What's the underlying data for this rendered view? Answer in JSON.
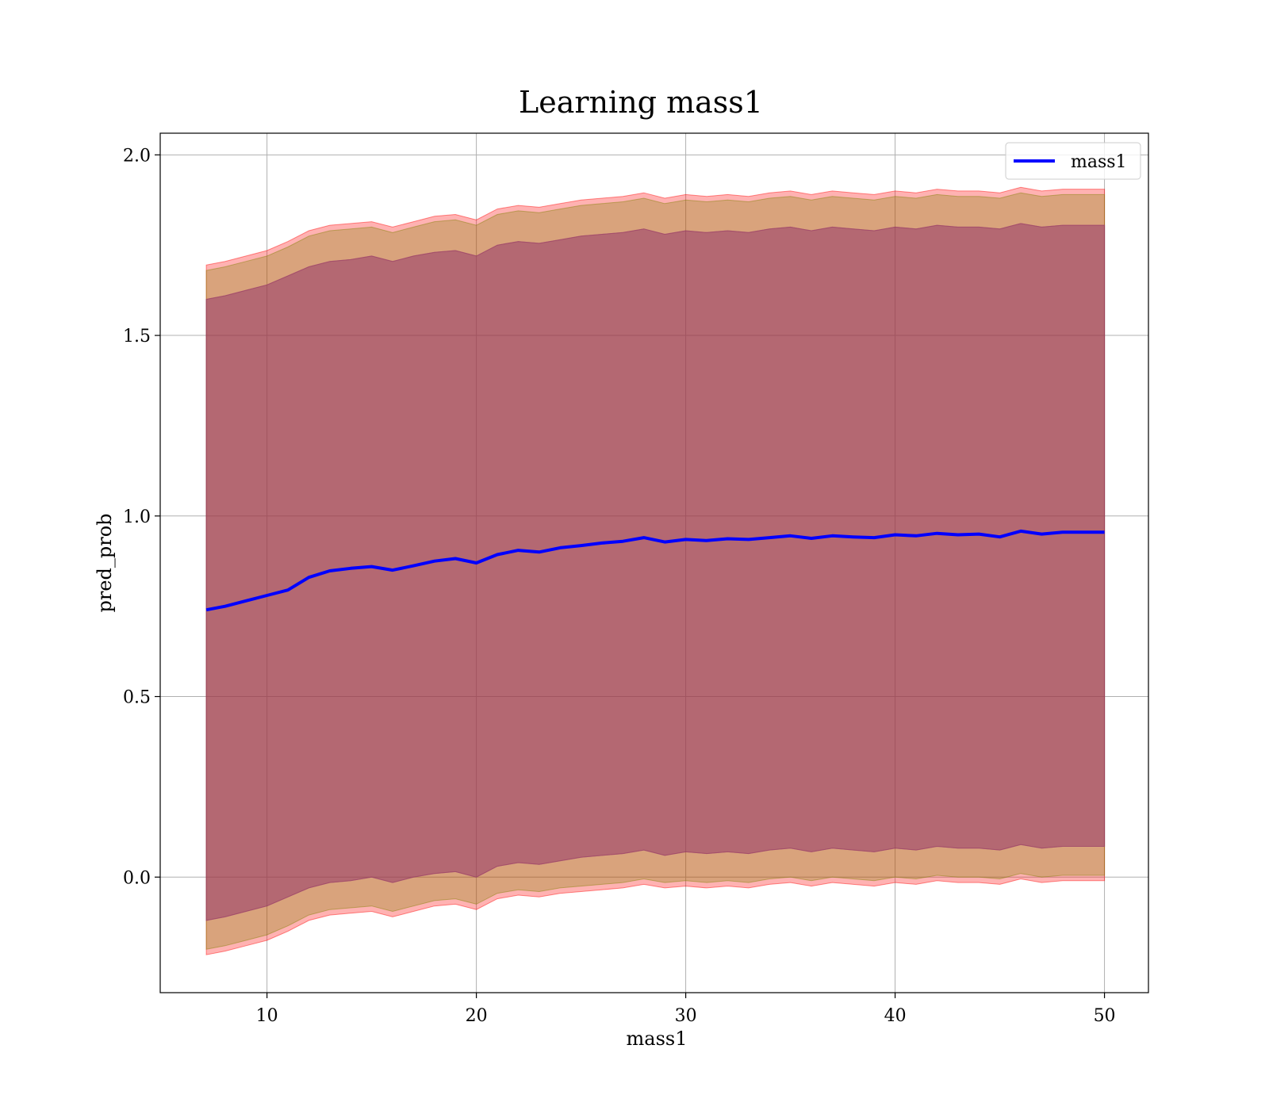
{
  "chart_data": {
    "type": "line",
    "title": "Learning mass1",
    "xlabel": "mass1",
    "ylabel": "pred_prob",
    "xlim": [
      4.9,
      52.1
    ],
    "ylim": [
      -0.32,
      2.06
    ],
    "xticks": [
      10,
      20,
      30,
      40,
      50
    ],
    "yticks": [
      0.0,
      0.5,
      1.0,
      1.5,
      2.0
    ],
    "xtick_labels": [
      "10",
      "20",
      "30",
      "40",
      "50"
    ],
    "ytick_labels": [
      "0.0",
      "0.5",
      "1.0",
      "1.5",
      "2.0"
    ],
    "grid": true,
    "legend_position": "top-right",
    "x": [
      7.1,
      8,
      9,
      10,
      11,
      12,
      13,
      14,
      15,
      16,
      17,
      18,
      19,
      20,
      21,
      22,
      23,
      24,
      25,
      26,
      27,
      28,
      29,
      30,
      31,
      32,
      33,
      34,
      35,
      36,
      37,
      38,
      39,
      40,
      41,
      42,
      43,
      44,
      45,
      46,
      47,
      48,
      49,
      50
    ],
    "series": [
      {
        "name": "mass1",
        "color": "#0000ff",
        "values": [
          0.74,
          0.75,
          0.765,
          0.78,
          0.795,
          0.83,
          0.848,
          0.855,
          0.86,
          0.85,
          0.862,
          0.875,
          0.882,
          0.87,
          0.893,
          0.905,
          0.9,
          0.912,
          0.918,
          0.925,
          0.93,
          0.94,
          0.928,
          0.935,
          0.932,
          0.937,
          0.935,
          0.94,
          0.945,
          0.938,
          0.945,
          0.942,
          0.94,
          0.948,
          0.945,
          0.952,
          0.948,
          0.95,
          0.942,
          0.958,
          0.95,
          0.955,
          0.955,
          0.955
        ]
      }
    ],
    "bands": [
      {
        "color": "#ff0000",
        "opacity": 0.3,
        "upper": [
          1.695,
          1.705,
          1.72,
          1.735,
          1.76,
          1.79,
          1.805,
          1.81,
          1.815,
          1.8,
          1.815,
          1.83,
          1.835,
          1.82,
          1.85,
          1.86,
          1.855,
          1.865,
          1.875,
          1.88,
          1.885,
          1.895,
          1.88,
          1.89,
          1.885,
          1.89,
          1.885,
          1.895,
          1.9,
          1.89,
          1.9,
          1.895,
          1.89,
          1.9,
          1.895,
          1.905,
          1.9,
          1.9,
          1.895,
          1.91,
          1.9,
          1.905,
          1.905,
          1.905
        ],
        "lower": [
          -0.215,
          -0.205,
          -0.19,
          -0.175,
          -0.15,
          -0.12,
          -0.105,
          -0.1,
          -0.095,
          -0.11,
          -0.095,
          -0.08,
          -0.075,
          -0.09,
          -0.06,
          -0.05,
          -0.055,
          -0.045,
          -0.04,
          -0.035,
          -0.03,
          -0.02,
          -0.03,
          -0.025,
          -0.03,
          -0.025,
          -0.03,
          -0.02,
          -0.015,
          -0.025,
          -0.015,
          -0.02,
          -0.025,
          -0.015,
          -0.02,
          -0.01,
          -0.015,
          -0.015,
          -0.02,
          -0.005,
          -0.015,
          -0.01,
          -0.01,
          -0.01
        ]
      },
      {
        "color": "#808000",
        "opacity": 0.3,
        "upper": [
          1.68,
          1.69,
          1.705,
          1.72,
          1.745,
          1.775,
          1.79,
          1.795,
          1.8,
          1.785,
          1.8,
          1.815,
          1.82,
          1.805,
          1.835,
          1.845,
          1.84,
          1.85,
          1.86,
          1.865,
          1.87,
          1.88,
          1.865,
          1.875,
          1.87,
          1.875,
          1.87,
          1.88,
          1.885,
          1.875,
          1.885,
          1.88,
          1.875,
          1.885,
          1.88,
          1.89,
          1.885,
          1.885,
          1.88,
          1.895,
          1.885,
          1.89,
          1.89,
          1.89
        ],
        "lower": [
          -0.2,
          -0.19,
          -0.175,
          -0.16,
          -0.135,
          -0.105,
          -0.09,
          -0.085,
          -0.08,
          -0.095,
          -0.08,
          -0.065,
          -0.06,
          -0.075,
          -0.045,
          -0.035,
          -0.04,
          -0.03,
          -0.025,
          -0.02,
          -0.015,
          -0.005,
          -0.015,
          -0.01,
          -0.015,
          -0.01,
          -0.015,
          -0.005,
          0.0,
          -0.01,
          0.0,
          -0.005,
          -0.01,
          0.0,
          -0.005,
          0.005,
          0.0,
          0.0,
          -0.005,
          0.01,
          0.0,
          0.005,
          0.005,
          0.005
        ]
      },
      {
        "color": "#800080",
        "opacity": 0.3,
        "upper": [
          1.6,
          1.61,
          1.625,
          1.64,
          1.665,
          1.69,
          1.705,
          1.71,
          1.72,
          1.705,
          1.72,
          1.73,
          1.735,
          1.72,
          1.75,
          1.76,
          1.755,
          1.765,
          1.775,
          1.78,
          1.785,
          1.795,
          1.78,
          1.79,
          1.785,
          1.79,
          1.785,
          1.795,
          1.8,
          1.79,
          1.8,
          1.795,
          1.79,
          1.8,
          1.795,
          1.805,
          1.8,
          1.8,
          1.795,
          1.81,
          1.8,
          1.805,
          1.805,
          1.805
        ],
        "lower": [
          -0.12,
          -0.11,
          -0.095,
          -0.08,
          -0.055,
          -0.03,
          -0.015,
          -0.01,
          0.0,
          -0.015,
          0.0,
          0.01,
          0.015,
          0.0,
          0.03,
          0.04,
          0.035,
          0.045,
          0.055,
          0.06,
          0.065,
          0.075,
          0.06,
          0.07,
          0.065,
          0.07,
          0.065,
          0.075,
          0.08,
          0.07,
          0.08,
          0.075,
          0.07,
          0.08,
          0.075,
          0.085,
          0.08,
          0.08,
          0.075,
          0.09,
          0.08,
          0.085,
          0.085,
          0.085
        ]
      },
      {
        "color": "#a0525a",
        "opacity": 0.3,
        "upper": [
          1.6,
          1.61,
          1.625,
          1.64,
          1.665,
          1.69,
          1.705,
          1.71,
          1.72,
          1.705,
          1.72,
          1.73,
          1.735,
          1.72,
          1.75,
          1.76,
          1.755,
          1.765,
          1.775,
          1.78,
          1.785,
          1.795,
          1.78,
          1.79,
          1.785,
          1.79,
          1.785,
          1.795,
          1.8,
          1.79,
          1.8,
          1.795,
          1.79,
          1.8,
          1.795,
          1.805,
          1.8,
          1.8,
          1.795,
          1.81,
          1.8,
          1.805,
          1.805,
          1.805
        ],
        "lower": [
          -0.12,
          -0.11,
          -0.095,
          -0.08,
          -0.055,
          -0.03,
          -0.015,
          -0.01,
          0.0,
          -0.015,
          0.0,
          0.01,
          0.015,
          0.0,
          0.03,
          0.04,
          0.035,
          0.045,
          0.055,
          0.06,
          0.065,
          0.075,
          0.06,
          0.07,
          0.065,
          0.07,
          0.065,
          0.075,
          0.08,
          0.07,
          0.08,
          0.075,
          0.07,
          0.08,
          0.075,
          0.085,
          0.08,
          0.08,
          0.075,
          0.09,
          0.08,
          0.085,
          0.085,
          0.085
        ]
      }
    ]
  }
}
